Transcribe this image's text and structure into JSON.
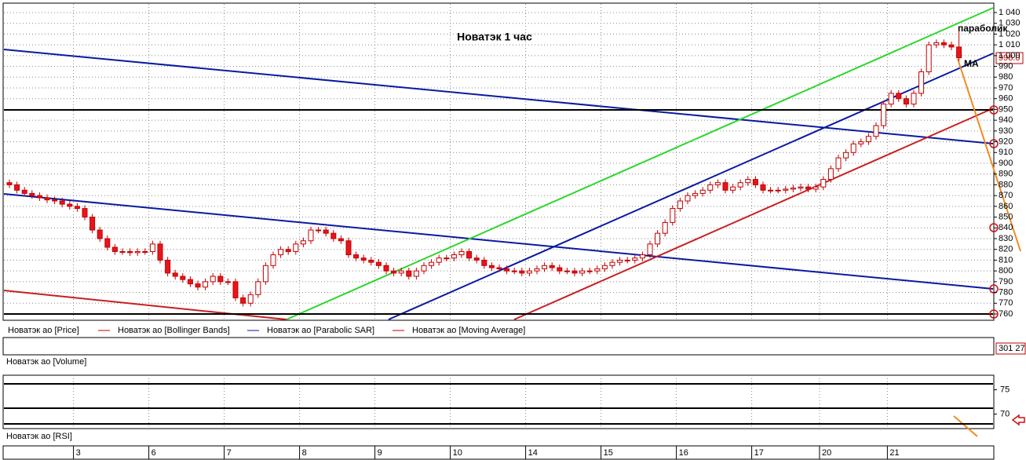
{
  "chart_data": {
    "type": "candlestick",
    "title": "Новатэк   1 час",
    "annotations": [
      "параболик",
      "МА"
    ],
    "last_price_label": "998.0",
    "legend": [
      "Новатэк ао [Price]",
      "Новатэк ао [Bollinger Bands]",
      "Новатэк ао [Parabolic SAR]",
      "Новатэк ао [Moving Average]"
    ],
    "volume_panel": {
      "label": "Новатэк ао [Volume]",
      "last_label": "301 27"
    },
    "rsi_panel": {
      "label": "Новатэк ао [RSI]",
      "ylim": [
        67,
        78
      ],
      "yticks": [
        75,
        70
      ]
    },
    "ylim": [
      760,
      1040
    ],
    "yticks": [
      {
        "value": 1040,
        "label": "1 040"
      },
      {
        "value": 1030,
        "label": "1 030"
      },
      {
        "value": 1020,
        "label": "1 020"
      },
      {
        "value": 1010,
        "label": "1 010"
      },
      {
        "value": 1000,
        "label": "1 000"
      },
      990,
      980,
      970,
      960,
      950,
      940,
      930,
      920,
      910,
      900,
      890,
      880,
      870,
      860,
      850,
      840,
      830,
      820,
      810,
      800,
      790,
      780,
      770,
      760
    ],
    "grid": true,
    "up_color": "#ffffff",
    "down_color": "#e8141c",
    "edge_color": "#c00000",
    "categories": [
      null,
      null,
      null,
      null,
      null,
      null,
      null,
      null,
      null,
      "3",
      null,
      null,
      null,
      null,
      null,
      null,
      null,
      null,
      null,
      "6",
      null,
      null,
      null,
      null,
      null,
      null,
      null,
      null,
      null,
      "7",
      null,
      null,
      null,
      null,
      null,
      null,
      null,
      null,
      null,
      "8",
      null,
      null,
      null,
      null,
      null,
      null,
      null,
      null,
      null,
      "9",
      null,
      null,
      null,
      null,
      null,
      null,
      null,
      null,
      null,
      "10",
      null,
      null,
      null,
      null,
      null,
      null,
      null,
      null,
      null,
      "14",
      null,
      null,
      null,
      null,
      null,
      null,
      null,
      null,
      null,
      "15",
      null,
      null,
      null,
      null,
      null,
      null,
      null,
      null,
      null,
      "16",
      null,
      null,
      null,
      null,
      null,
      null,
      null,
      null,
      null,
      "17",
      null,
      null,
      null,
      null,
      null,
      null,
      null,
      null,
      "20",
      null,
      null,
      null,
      null,
      null,
      null,
      null,
      null,
      "21",
      null,
      null,
      null,
      null,
      null,
      null,
      null,
      null,
      null
    ],
    "ohlc": [
      [
        882,
        885,
        877,
        880
      ],
      [
        880,
        883,
        872,
        875
      ],
      [
        875,
        878,
        869,
        872
      ],
      [
        872,
        875,
        867,
        870
      ],
      [
        870,
        873,
        865,
        868
      ],
      [
        868,
        871,
        863,
        866
      ],
      [
        866,
        869,
        862,
        865
      ],
      [
        865,
        868,
        859,
        862
      ],
      [
        862,
        865,
        857,
        860
      ],
      [
        860,
        863,
        855,
        858
      ],
      [
        858,
        861,
        847,
        850
      ],
      [
        850,
        853,
        835,
        838
      ],
      [
        838,
        841,
        827,
        830
      ],
      [
        830,
        833,
        819,
        822
      ],
      [
        822,
        825,
        815,
        818
      ],
      [
        818,
        821,
        815,
        818
      ],
      [
        818,
        821,
        814,
        817
      ],
      [
        817,
        821,
        814,
        818
      ],
      [
        818,
        821,
        815,
        818
      ],
      [
        818,
        828,
        815,
        825
      ],
      [
        825,
        828,
        807,
        810
      ],
      [
        810,
        813,
        795,
        798
      ],
      [
        798,
        801,
        792,
        795
      ],
      [
        795,
        798,
        789,
        792
      ],
      [
        792,
        795,
        785,
        788
      ],
      [
        788,
        791,
        782,
        785
      ],
      [
        785,
        793,
        782,
        790
      ],
      [
        790,
        798,
        787,
        795
      ],
      [
        795,
        798,
        787,
        790
      ],
      [
        790,
        793,
        787,
        790
      ],
      [
        790,
        793,
        772,
        775
      ],
      [
        775,
        778,
        767,
        770
      ],
      [
        770,
        781,
        767,
        778
      ],
      [
        778,
        793,
        775,
        790
      ],
      [
        790,
        808,
        787,
        805
      ],
      [
        805,
        818,
        802,
        815
      ],
      [
        815,
        823,
        812,
        820
      ],
      [
        820,
        823,
        815,
        818
      ],
      [
        818,
        828,
        815,
        825
      ],
      [
        825,
        831,
        822,
        828
      ],
      [
        828,
        841,
        825,
        838
      ],
      [
        838,
        841,
        835,
        838
      ],
      [
        838,
        841,
        832,
        835
      ],
      [
        835,
        838,
        827,
        830
      ],
      [
        830,
        833,
        825,
        828
      ],
      [
        828,
        831,
        812,
        815
      ],
      [
        815,
        818,
        809,
        812
      ],
      [
        812,
        815,
        807,
        810
      ],
      [
        810,
        813,
        805,
        808
      ],
      [
        808,
        811,
        802,
        805
      ],
      [
        805,
        808,
        797,
        800
      ],
      [
        800,
        803,
        795,
        798
      ],
      [
        798,
        803,
        795,
        800
      ],
      [
        800,
        803,
        792,
        795
      ],
      [
        795,
        803,
        792,
        800
      ],
      [
        800,
        808,
        797,
        805
      ],
      [
        805,
        811,
        802,
        808
      ],
      [
        808,
        815,
        805,
        812
      ],
      [
        812,
        815,
        809,
        812
      ],
      [
        812,
        818,
        809,
        815
      ],
      [
        815,
        821,
        812,
        818
      ],
      [
        818,
        821,
        809,
        812
      ],
      [
        812,
        815,
        807,
        810
      ],
      [
        810,
        813,
        802,
        805
      ],
      [
        805,
        808,
        800,
        803
      ],
      [
        803,
        806,
        799,
        802
      ],
      [
        802,
        805,
        797,
        800
      ],
      [
        800,
        803,
        797,
        800
      ],
      [
        800,
        803,
        795,
        798
      ],
      [
        798,
        803,
        795,
        800
      ],
      [
        800,
        805,
        797,
        802
      ],
      [
        802,
        808,
        799,
        805
      ],
      [
        805,
        808,
        800,
        803
      ],
      [
        803,
        806,
        797,
        800
      ],
      [
        800,
        803,
        797,
        800
      ],
      [
        800,
        803,
        795,
        798
      ],
      [
        798,
        803,
        795,
        800
      ],
      [
        800,
        803,
        797,
        800
      ],
      [
        800,
        805,
        797,
        802
      ],
      [
        802,
        808,
        799,
        805
      ],
      [
        805,
        811,
        802,
        808
      ],
      [
        808,
        813,
        805,
        810
      ],
      [
        810,
        813,
        807,
        810
      ],
      [
        810,
        815,
        807,
        812
      ],
      [
        812,
        818,
        809,
        815
      ],
      [
        815,
        828,
        812,
        825
      ],
      [
        825,
        838,
        822,
        835
      ],
      [
        835,
        848,
        832,
        845
      ],
      [
        845,
        861,
        842,
        858
      ],
      [
        858,
        868,
        855,
        865
      ],
      [
        865,
        873,
        862,
        870
      ],
      [
        870,
        875,
        867,
        872
      ],
      [
        872,
        878,
        869,
        875
      ],
      [
        875,
        883,
        872,
        880
      ],
      [
        880,
        885,
        877,
        882
      ],
      [
        882,
        885,
        872,
        875
      ],
      [
        875,
        881,
        872,
        878
      ],
      [
        878,
        885,
        875,
        882
      ],
      [
        882,
        888,
        879,
        885
      ],
      [
        885,
        888,
        877,
        880
      ],
      [
        880,
        883,
        872,
        875
      ],
      [
        875,
        878,
        872,
        875
      ],
      [
        875,
        878,
        872,
        875
      ],
      [
        875,
        879,
        872,
        876
      ],
      [
        876,
        880,
        873,
        877
      ],
      [
        877,
        881,
        874,
        878
      ],
      [
        878,
        881,
        873,
        876
      ],
      [
        876,
        881,
        873,
        878
      ],
      [
        878,
        888,
        875,
        885
      ],
      [
        885,
        898,
        882,
        895
      ],
      [
        895,
        908,
        892,
        905
      ],
      [
        905,
        913,
        902,
        910
      ],
      [
        910,
        921,
        907,
        918
      ],
      [
        918,
        923,
        915,
        920
      ],
      [
        920,
        928,
        917,
        925
      ],
      [
        925,
        938,
        922,
        935
      ],
      [
        935,
        958,
        932,
        955
      ],
      [
        955,
        968,
        952,
        965
      ],
      [
        965,
        968,
        957,
        960
      ],
      [
        960,
        963,
        952,
        955
      ],
      [
        955,
        968,
        952,
        965
      ],
      [
        965,
        988,
        962,
        985
      ],
      [
        985,
        1013,
        982,
        1010
      ],
      [
        1010,
        1015,
        1007,
        1012
      ],
      [
        1012,
        1015,
        1007,
        1010
      ],
      [
        1010,
        1013,
        1005,
        1008
      ],
      [
        1008,
        1023,
        995,
        998
      ]
    ]
  }
}
